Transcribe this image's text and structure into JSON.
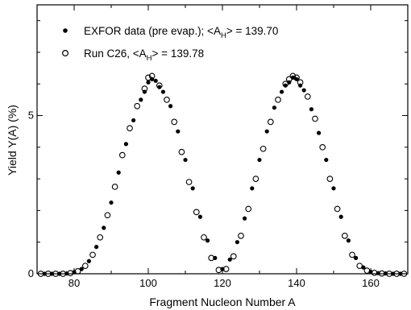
{
  "chart_data": {
    "type": "scatter",
    "xlabel": "Fragment Nucleon Number  A",
    "ylabel": "Yield Y(A) (%)",
    "xlim": [
      70,
      170
    ],
    "ylim": [
      0,
      8.5
    ],
    "xticks": [
      80,
      100,
      120,
      140,
      160
    ],
    "xtick_labels": [
      "80",
      "100",
      "120",
      "140",
      "160"
    ],
    "yticks": [
      0,
      5
    ],
    "ytick_labels": [
      "0",
      "5"
    ],
    "legend_placement": "top-left",
    "grid": false,
    "legend": [
      {
        "marker": "filled-circle",
        "label_main": "EXFOR data (pre evap.); <A",
        "label_sub": "H",
        "label_end": "> = 139.70"
      },
      {
        "marker": "open-circle",
        "label_main": "Run C26, <A",
        "label_sub": "H",
        "label_end": "> = 139.78"
      }
    ],
    "series": [
      {
        "name": "EXFOR data (pre evap.); <AH> = 139.70",
        "marker": "filled",
        "x": [
          72,
          74,
          76,
          78,
          80,
          82,
          84,
          86,
          88,
          90,
          92,
          94,
          96,
          98,
          99,
          100,
          101,
          102,
          103,
          104,
          106,
          108,
          110,
          112,
          114,
          116,
          118,
          120,
          122,
          124,
          126,
          128,
          130,
          132,
          134,
          136,
          137,
          138,
          139,
          140,
          141,
          142,
          144,
          146,
          148,
          150,
          152,
          154,
          156,
          158,
          160,
          162,
          164,
          166,
          168
        ],
        "y": [
          0.0,
          0.0,
          0.0,
          0.01,
          0.05,
          0.15,
          0.4,
          0.85,
          1.45,
          2.25,
          3.2,
          4.1,
          4.85,
          5.5,
          5.75,
          6.05,
          6.15,
          6.1,
          5.9,
          5.75,
          5.3,
          4.5,
          3.6,
          2.7,
          1.8,
          1.05,
          0.5,
          0.15,
          0.45,
          1.0,
          1.75,
          2.7,
          3.6,
          4.5,
          5.25,
          5.75,
          5.95,
          6.05,
          6.2,
          6.15,
          5.95,
          5.8,
          5.2,
          4.45,
          3.6,
          2.7,
          1.8,
          1.05,
          0.5,
          0.2,
          0.06,
          0.02,
          0.01,
          0.0,
          0.0
        ]
      },
      {
        "name": "Run C26, <AH> = 139.78",
        "marker": "open",
        "x": [
          71,
          73,
          75,
          77,
          79,
          81,
          83,
          85,
          87,
          89,
          91,
          93,
          95,
          97,
          99,
          100,
          101,
          103,
          105,
          107,
          109,
          111,
          113,
          115,
          117,
          119,
          121,
          123,
          125,
          127,
          129,
          131,
          133,
          135,
          137,
          138,
          139,
          140,
          141,
          143,
          145,
          147,
          149,
          151,
          153,
          155,
          157,
          159,
          161,
          163,
          165,
          167,
          169
        ],
        "y": [
          0.0,
          0.0,
          0.0,
          0.0,
          0.02,
          0.08,
          0.25,
          0.6,
          1.15,
          1.85,
          2.75,
          3.75,
          4.6,
          5.3,
          5.85,
          6.2,
          6.25,
          5.95,
          5.5,
          4.8,
          3.85,
          2.9,
          1.95,
          1.15,
          0.5,
          0.12,
          0.15,
          0.55,
          1.2,
          2.05,
          3.0,
          3.95,
          4.8,
          5.5,
          6.0,
          6.15,
          6.25,
          6.2,
          6.05,
          5.6,
          4.9,
          4.0,
          3.0,
          2.05,
          1.2,
          0.6,
          0.25,
          0.1,
          0.03,
          0.01,
          0.0,
          0.0,
          0.0
        ]
      }
    ]
  }
}
